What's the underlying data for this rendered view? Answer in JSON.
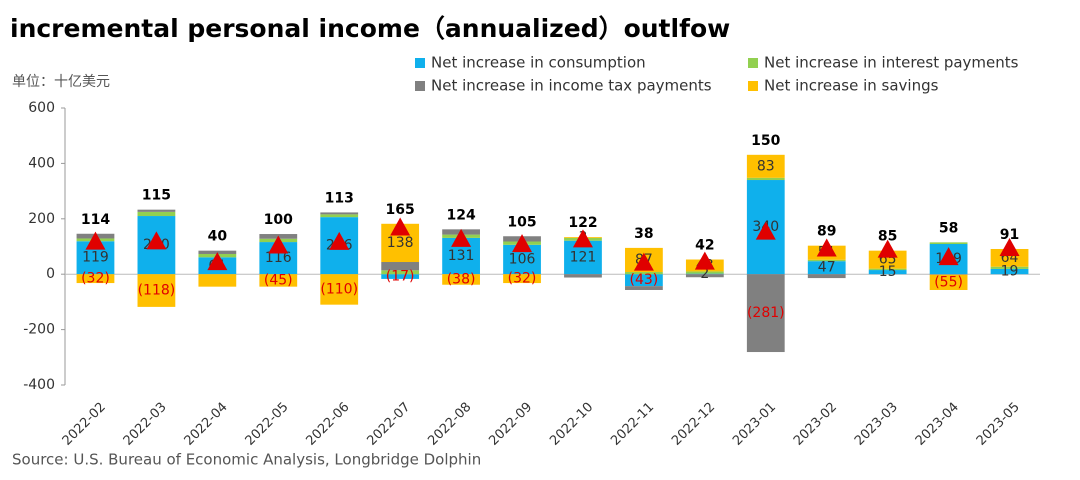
{
  "chart_data": {
    "type": "stacked-bar",
    "title": "incremental personal income（annualized）outlfow",
    "subtitle": "单位：十亿美元",
    "source": "Source: U.S. Bureau of Economic Analysis, Longbridge Dolphin",
    "categories": [
      "2022-02",
      "2022-03",
      "2022-04",
      "2022-05",
      "2022-06",
      "2022-07",
      "2022-08",
      "2022-09",
      "2022-10",
      "2022-11",
      "2022-12",
      "2023-01",
      "2023-02",
      "2023-03",
      "2023-04",
      "2023-05"
    ],
    "series": [
      {
        "name": "Net increase in consumption",
        "color": "#0fb0ec",
        "values": [
          119,
          210,
          61,
          116,
          206,
          -17,
          131,
          106,
          121,
          -43,
          2,
          340,
          47,
          15,
          109,
          19
        ],
        "value_labels": [
          "119",
          "210",
          "61",
          "116",
          "206",
          "(17)",
          "131",
          "106",
          "121",
          "(43)",
          "2",
          "340",
          "47",
          "15",
          "109",
          "19"
        ]
      },
      {
        "name": "Net increase in interest payments",
        "color": "#92d050",
        "values": [
          10,
          15,
          12,
          12,
          10,
          14,
          12,
          12,
          10,
          8,
          8,
          8,
          5,
          5,
          6,
          8
        ]
      },
      {
        "name": "Net increase in income tax payments",
        "color": "#808080",
        "values": [
          17,
          8,
          12,
          17,
          7,
          30,
          19,
          19,
          -12,
          -14,
          -11,
          -281,
          -14,
          0,
          -2,
          0
        ],
        "value_labels": [
          null,
          null,
          null,
          null,
          null,
          null,
          null,
          null,
          null,
          null,
          null,
          "(281)",
          null,
          null,
          null,
          null
        ]
      },
      {
        "name": "Net increase in savings",
        "color": "#ffc000",
        "values": [
          -32,
          -118,
          -45,
          -45,
          -110,
          138,
          -38,
          -32,
          3,
          87,
          43,
          83,
          51,
          65,
          -55,
          64
        ],
        "value_labels": [
          "(32)",
          "(118)",
          null,
          "(45)",
          "(110)",
          "138",
          "(38)",
          "(32)",
          "3",
          "87",
          "43",
          "83",
          "51",
          "65",
          "(55)",
          "64"
        ]
      }
    ],
    "totals": {
      "color": "#e00000",
      "values": [
        114,
        115,
        40,
        100,
        113,
        165,
        124,
        105,
        122,
        38,
        42,
        150,
        89,
        85,
        58,
        91
      ]
    },
    "ylim": [
      -400,
      600
    ],
    "yticks": [
      -400,
      -200,
      0,
      200,
      400,
      600
    ]
  }
}
